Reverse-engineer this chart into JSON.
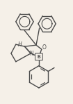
{
  "background_color": "#f5f0e8",
  "line_color": "#4a4a4a",
  "line_width": 1.0,
  "fig_width": 1.05,
  "fig_height": 1.48,
  "dpi": 100,
  "xlim": [
    0,
    105
  ],
  "ylim": [
    0,
    148
  ]
}
